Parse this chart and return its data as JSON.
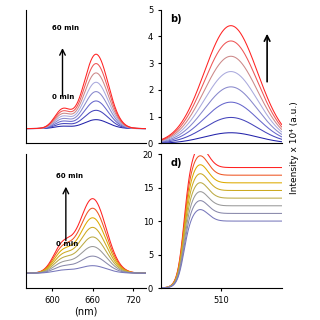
{
  "panel_b_colors": [
    "#2222aa",
    "#4444bb",
    "#6666cc",
    "#8888cc",
    "#aaaadd",
    "#cc8888",
    "#ee5555",
    "#ff2222"
  ],
  "panel_d_colors": [
    "#ff2222",
    "#ee5522",
    "#ddaa00",
    "#ccaa22",
    "#bbaa44",
    "#999999",
    "#8888aa",
    "#7777bb"
  ],
  "panel_a_colors": [
    "#2222aa",
    "#4444bb",
    "#6666cc",
    "#8888cc",
    "#aaaadd",
    "#cc8888",
    "#ee5555",
    "#ff2222"
  ],
  "panel_c_colors": [
    "#ff2222",
    "#ee5522",
    "#ddaa00",
    "#ccaa22",
    "#bbaa44",
    "#999999",
    "#8888aa",
    "#7777bb"
  ],
  "xlim_left": [
    560,
    740
  ],
  "xlim_right": [
    460,
    560
  ],
  "ylim_b": [
    0,
    5
  ],
  "ylim_d": [
    0,
    20
  ],
  "ylim_a": [
    -0.005,
    0.04
  ],
  "ylim_c": [
    -0.01,
    0.08
  ],
  "xticks_left": [
    600,
    660,
    720
  ],
  "xticks_right": [
    510
  ],
  "yticks_b": [
    0,
    1,
    2,
    3,
    4,
    5
  ],
  "yticks_d": [
    0,
    5,
    10,
    15,
    20
  ],
  "ylabel": "Intensity x 10⁴ (a.u.)",
  "xlabel": "(nm)",
  "label_b": "b)",
  "label_d": "d)"
}
